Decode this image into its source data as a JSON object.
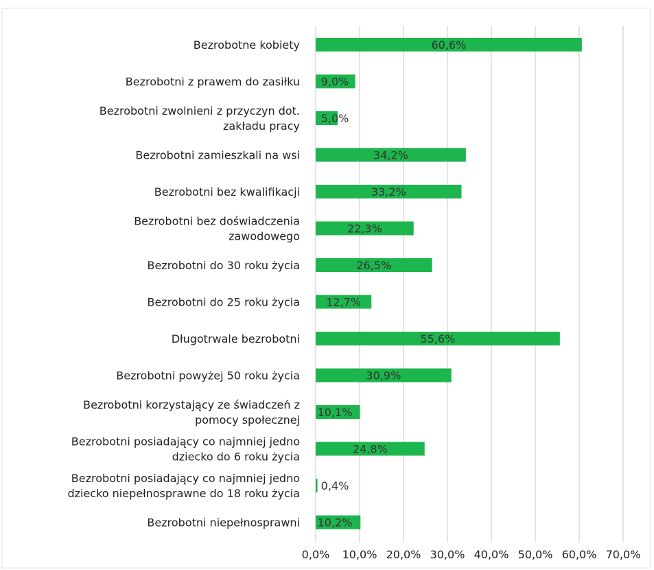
{
  "chart_data": {
    "type": "bar",
    "orientation": "horizontal",
    "categories": [
      [
        "Bezrobotne kobiety"
      ],
      [
        "Bezrobotni z prawem do zasiłku"
      ],
      [
        "Bezrobotni  zwolnieni z przyczyn dot.",
        "zakładu pracy"
      ],
      [
        "Bezrobotni zamieszkali na wsi"
      ],
      [
        "Bezrobotni bez kwalifikacji"
      ],
      [
        "Bezrobotni bez doświadczenia",
        "zawodowego"
      ],
      [
        "Bezrobotni do 30 roku życia"
      ],
      [
        "Bezrobotni do 25 roku życia"
      ],
      [
        "Długotrwale bezrobotni"
      ],
      [
        "Bezrobotni powyżej 50 roku życia"
      ],
      [
        "Bezrobotni korzystający ze świadczeń z",
        "pomocy społecznej"
      ],
      [
        "Bezrobotni posiadający co najmniej jedno",
        "dziecko do 6 roku życia"
      ],
      [
        "Bezrobotni posiadający co najmniej jedno",
        "dziecko niepełnosprawne do 18 roku życia"
      ],
      [
        "Bezrobotni niepełnosprawni"
      ]
    ],
    "values": [
      60.6,
      9.0,
      5.0,
      34.2,
      33.2,
      22.3,
      26.5,
      12.7,
      55.6,
      30.9,
      10.1,
      24.8,
      0.4,
      10.2
    ],
    "data_labels": [
      "60,6%",
      "9,0%",
      "5,0%",
      "34,2%",
      "33,2%",
      "22,3%",
      "26,5%",
      "12,7%",
      "55,6%",
      "30,9%",
      "10,1%",
      "24,8%",
      "0,4%",
      "10,2%"
    ],
    "xlim": [
      0,
      70
    ],
    "xticks": [
      0,
      10,
      20,
      30,
      40,
      50,
      60,
      70
    ],
    "xtick_labels": [
      "0,0%",
      "10,0%",
      "20,0%",
      "30,0%",
      "40,0%",
      "50,0%",
      "60,0%",
      "70,0%"
    ],
    "bar_color": "#1db54d",
    "grid": true,
    "legend": "none",
    "title": "",
    "xlabel": "",
    "ylabel": ""
  }
}
